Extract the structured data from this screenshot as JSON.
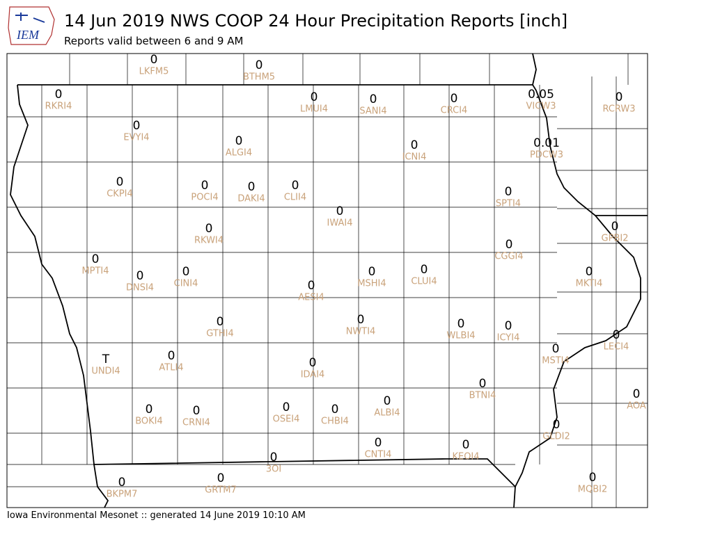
{
  "header": {
    "logo": "IEM",
    "title": "14 Jun 2019 NWS COOP 24 Hour Precipitation Reports [inch]",
    "subtitle": "Reports valid between 6 and 9 AM"
  },
  "stations": [
    {
      "id": "LKFM5",
      "value": 0
    },
    {
      "id": "BTHM5",
      "value": 0
    },
    {
      "id": "RKRI4",
      "value": 0
    },
    {
      "id": "LMUI4",
      "value": 0
    },
    {
      "id": "SANI4",
      "value": 0
    },
    {
      "id": "CRCI4",
      "value": 0
    },
    {
      "id": "VICW3",
      "value": 0.05
    },
    {
      "id": "RCRW3",
      "value": 0
    },
    {
      "id": "EVYI4",
      "value": 0
    },
    {
      "id": "ALGI4",
      "value": 0
    },
    {
      "id": "ICNI4",
      "value": 0
    },
    {
      "id": "PDCW3",
      "value": 0.01
    },
    {
      "id": "CKPI4",
      "value": 0
    },
    {
      "id": "POCI4",
      "value": 0
    },
    {
      "id": "DAKI4",
      "value": 0
    },
    {
      "id": "CLII4",
      "value": 0
    },
    {
      "id": "SPTI4",
      "value": 0
    },
    {
      "id": "IWAI4",
      "value": 0
    },
    {
      "id": "RKWI4",
      "value": 0
    },
    {
      "id": "GPBI2",
      "value": 0
    },
    {
      "id": "CGGI4",
      "value": 0
    },
    {
      "id": "MPTI4",
      "value": 0
    },
    {
      "id": "DNSI4",
      "value": 0
    },
    {
      "id": "CINI4",
      "value": 0
    },
    {
      "id": "MSHI4",
      "value": 0
    },
    {
      "id": "CLUI4",
      "value": 0
    },
    {
      "id": "MKTI4",
      "value": 0
    },
    {
      "id": "AESI4",
      "value": 0
    },
    {
      "id": "NWTI4",
      "value": 0
    },
    {
      "id": "GTHI4",
      "value": 0
    },
    {
      "id": "WLBI4",
      "value": 0
    },
    {
      "id": "ICYI4",
      "value": 0
    },
    {
      "id": "LECI4",
      "value": 0
    },
    {
      "id": "MSTI4",
      "value": 0
    },
    {
      "id": "UNDI4",
      "value": "T"
    },
    {
      "id": "ATLI4",
      "value": 0
    },
    {
      "id": "IDAI4",
      "value": 0
    },
    {
      "id": "BTNI4",
      "value": 0
    },
    {
      "id": "AOA",
      "value": 0
    },
    {
      "id": "ALBI4",
      "value": 0
    },
    {
      "id": "OSEI4",
      "value": 0
    },
    {
      "id": "CHBI4",
      "value": 0
    },
    {
      "id": "BOKI4",
      "value": 0
    },
    {
      "id": "CRNI4",
      "value": 0
    },
    {
      "id": "GLDI2",
      "value": 0
    },
    {
      "id": "CNTI4",
      "value": 0
    },
    {
      "id": "KEOI4",
      "value": 0
    },
    {
      "id": "3OI",
      "value": 0
    },
    {
      "id": "BKPM7",
      "value": 0
    },
    {
      "id": "GRTM7",
      "value": 0
    },
    {
      "id": "MQBI2",
      "value": 0
    }
  ],
  "footer": "Iowa Environmental Mesonet :: generated 14 June 2019 10:10 AM"
}
